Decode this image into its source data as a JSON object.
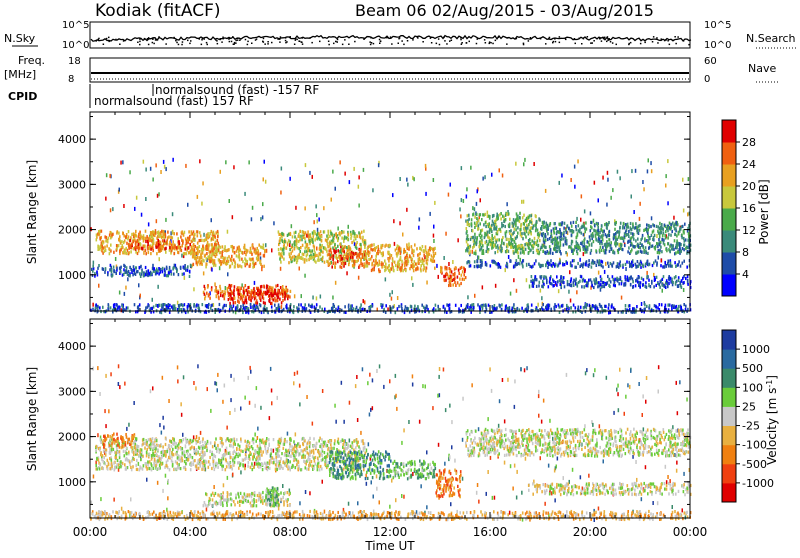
{
  "header": {
    "radar": "Kodiak (fitACF)",
    "beam_info": "Beam 06 02/Aug/2015 - 03/Aug/2015"
  },
  "top_panels": {
    "nsky_label": "N.Sky",
    "nsky_ticks": [
      "10^5",
      "10^0"
    ],
    "nsearch_label": "N.Search",
    "nsearch_ticks": [
      "10^5",
      "10^0"
    ],
    "freq_label": "Freq.",
    "freq_unit": "[MHz]",
    "freq_ticks": [
      "18",
      "8"
    ],
    "nave_label": "Nave",
    "nave_ticks": [
      "60",
      "0"
    ],
    "cpid_label": "CPID",
    "cpid_entries": [
      "normalsound (fast) -157 RF",
      "normalsound (fast) 157 RF"
    ]
  },
  "chart_data": [
    {
      "type": "heatmap",
      "panel": "power",
      "ylabel": "Slant Range [km]",
      "xlabel": "",
      "yticks": [
        1000,
        2000,
        3000,
        4000
      ],
      "ylim": [
        200,
        4600
      ],
      "xlim": [
        0,
        24
      ],
      "colorbar": {
        "label": "Power [dB]",
        "ticks": [
          "4",
          "8",
          "12",
          "16",
          "20",
          "24",
          "28"
        ],
        "colors": [
          "#0000ff",
          "#1e4ca8",
          "#3a8a7a",
          "#4aaa4a",
          "#c8c83c",
          "#e8a020",
          "#f06010",
          "#e00000"
        ]
      },
      "regions": [
        {
          "t0": 0.2,
          "t1": 5.2,
          "r0": 1500,
          "r1": 2000,
          "level": 5
        },
        {
          "t0": 1.5,
          "t1": 4.0,
          "r0": 1600,
          "r1": 1800,
          "level": 6
        },
        {
          "t0": 4.0,
          "t1": 7.0,
          "r0": 1200,
          "r1": 1700,
          "level": 5
        },
        {
          "t0": 4.5,
          "t1": 8.0,
          "r0": 500,
          "r1": 800,
          "level": 6
        },
        {
          "t0": 5.5,
          "t1": 7.8,
          "r0": 400,
          "r1": 700,
          "level": 7
        },
        {
          "t0": 7.5,
          "t1": 11.0,
          "r0": 1300,
          "r1": 2000,
          "level": 4
        },
        {
          "t0": 9.5,
          "t1": 11.0,
          "r0": 1200,
          "r1": 1600,
          "level": 6
        },
        {
          "t0": 11.0,
          "t1": 13.8,
          "r0": 1100,
          "r1": 1700,
          "level": 5
        },
        {
          "t0": 14.0,
          "t1": 15.0,
          "r0": 800,
          "r1": 1200,
          "level": 6
        },
        {
          "t0": 15.0,
          "t1": 18.0,
          "r0": 1500,
          "r1": 2400,
          "level": 3
        },
        {
          "t0": 18.0,
          "t1": 24.0,
          "r0": 1500,
          "r1": 2200,
          "level": 2
        },
        {
          "t0": 17.5,
          "t1": 24.0,
          "r0": 750,
          "r1": 1000,
          "level": 1
        },
        {
          "t0": 15.0,
          "t1": 24.0,
          "r0": 1200,
          "r1": 1350,
          "level": 1
        },
        {
          "t0": 0.0,
          "t1": 24.0,
          "r0": 200,
          "r1": 380,
          "level": 1
        },
        {
          "t0": 0.0,
          "t1": 4.0,
          "r0": 1000,
          "r1": 1250,
          "level": 1
        }
      ]
    },
    {
      "type": "heatmap",
      "panel": "velocity",
      "ylabel": "Slant Range [km]",
      "xlabel": "Time UT",
      "yticks": [
        1000,
        2000,
        3000,
        4000
      ],
      "ylim": [
        200,
        4600
      ],
      "xlim": [
        0,
        24
      ],
      "xticks": [
        "00:00",
        "04:00",
        "08:00",
        "12:00",
        "16:00",
        "20:00",
        "00:00"
      ],
      "colorbar": {
        "label": "Velocity [m s^-1]",
        "ticks": [
          "1000",
          "500",
          "100",
          "25",
          "-25",
          "-100",
          "-500",
          "-1000"
        ],
        "colors": [
          "#1e3ca0",
          "#2a6aa0",
          "#3a8a6a",
          "#6acc3a",
          "#c8c8c8",
          "#e8b040",
          "#f08010",
          "#f04010",
          "#e00000"
        ]
      },
      "regions": [
        {
          "t0": 0.2,
          "t1": 11.0,
          "r0": 1300,
          "r1": 2000,
          "level": 4
        },
        {
          "t0": 0.5,
          "t1": 1.8,
          "r0": 1800,
          "r1": 2100,
          "level": 6
        },
        {
          "t0": 4.5,
          "t1": 8.0,
          "r0": 500,
          "r1": 800,
          "level": 4
        },
        {
          "t0": 7.0,
          "t1": 7.5,
          "r0": 500,
          "r1": 900,
          "level": 3
        },
        {
          "t0": 9.5,
          "t1": 12.0,
          "r0": 1100,
          "r1": 1700,
          "level": 2
        },
        {
          "t0": 12.0,
          "t1": 13.8,
          "r0": 1100,
          "r1": 1500,
          "level": 3
        },
        {
          "t0": 13.8,
          "t1": 14.8,
          "r0": 700,
          "r1": 1300,
          "level": 6
        },
        {
          "t0": 15.0,
          "t1": 24.0,
          "r0": 1600,
          "r1": 2200,
          "level": 4
        },
        {
          "t0": 17.5,
          "t1": 24.0,
          "r0": 750,
          "r1": 1000,
          "level": 4
        },
        {
          "t0": 0.0,
          "t1": 24.0,
          "r0": 200,
          "r1": 380,
          "level": 5
        }
      ]
    }
  ]
}
